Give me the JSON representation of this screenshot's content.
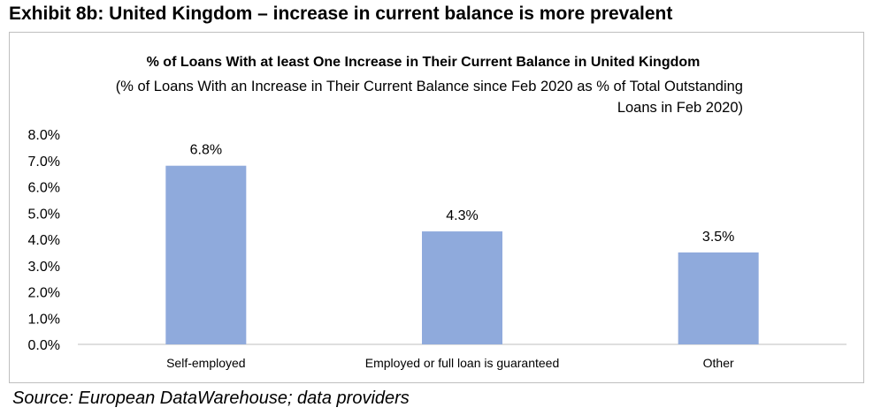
{
  "exhibit_title": "Exhibit 8b: United Kingdom – increase in current balance is more prevalent",
  "source_note": "Source: European DataWarehouse; data providers",
  "colors": {
    "bar": "#8faadc",
    "axis": "#bfbfbf"
  },
  "chart_data": {
    "type": "bar",
    "title": "% of Loans With at least One Increase in Their Current Balance in United Kingdom",
    "subtitle": "(% of Loans With an Increase in Their Current Balance since Feb 2020 as % of Total Outstanding Loans in Feb 2020)",
    "categories": [
      "Self-employed",
      "Employed or full loan is guaranteed",
      "Other"
    ],
    "values": [
      6.8,
      4.3,
      3.5
    ],
    "data_labels": [
      "6.8%",
      "4.3%",
      "3.5%"
    ],
    "ylim": [
      0,
      8
    ],
    "yticks": [
      "0.0%",
      "1.0%",
      "2.0%",
      "3.0%",
      "4.0%",
      "5.0%",
      "6.0%",
      "7.0%",
      "8.0%"
    ],
    "xlabel": "",
    "ylabel": "",
    "grid": false,
    "legend": false
  }
}
